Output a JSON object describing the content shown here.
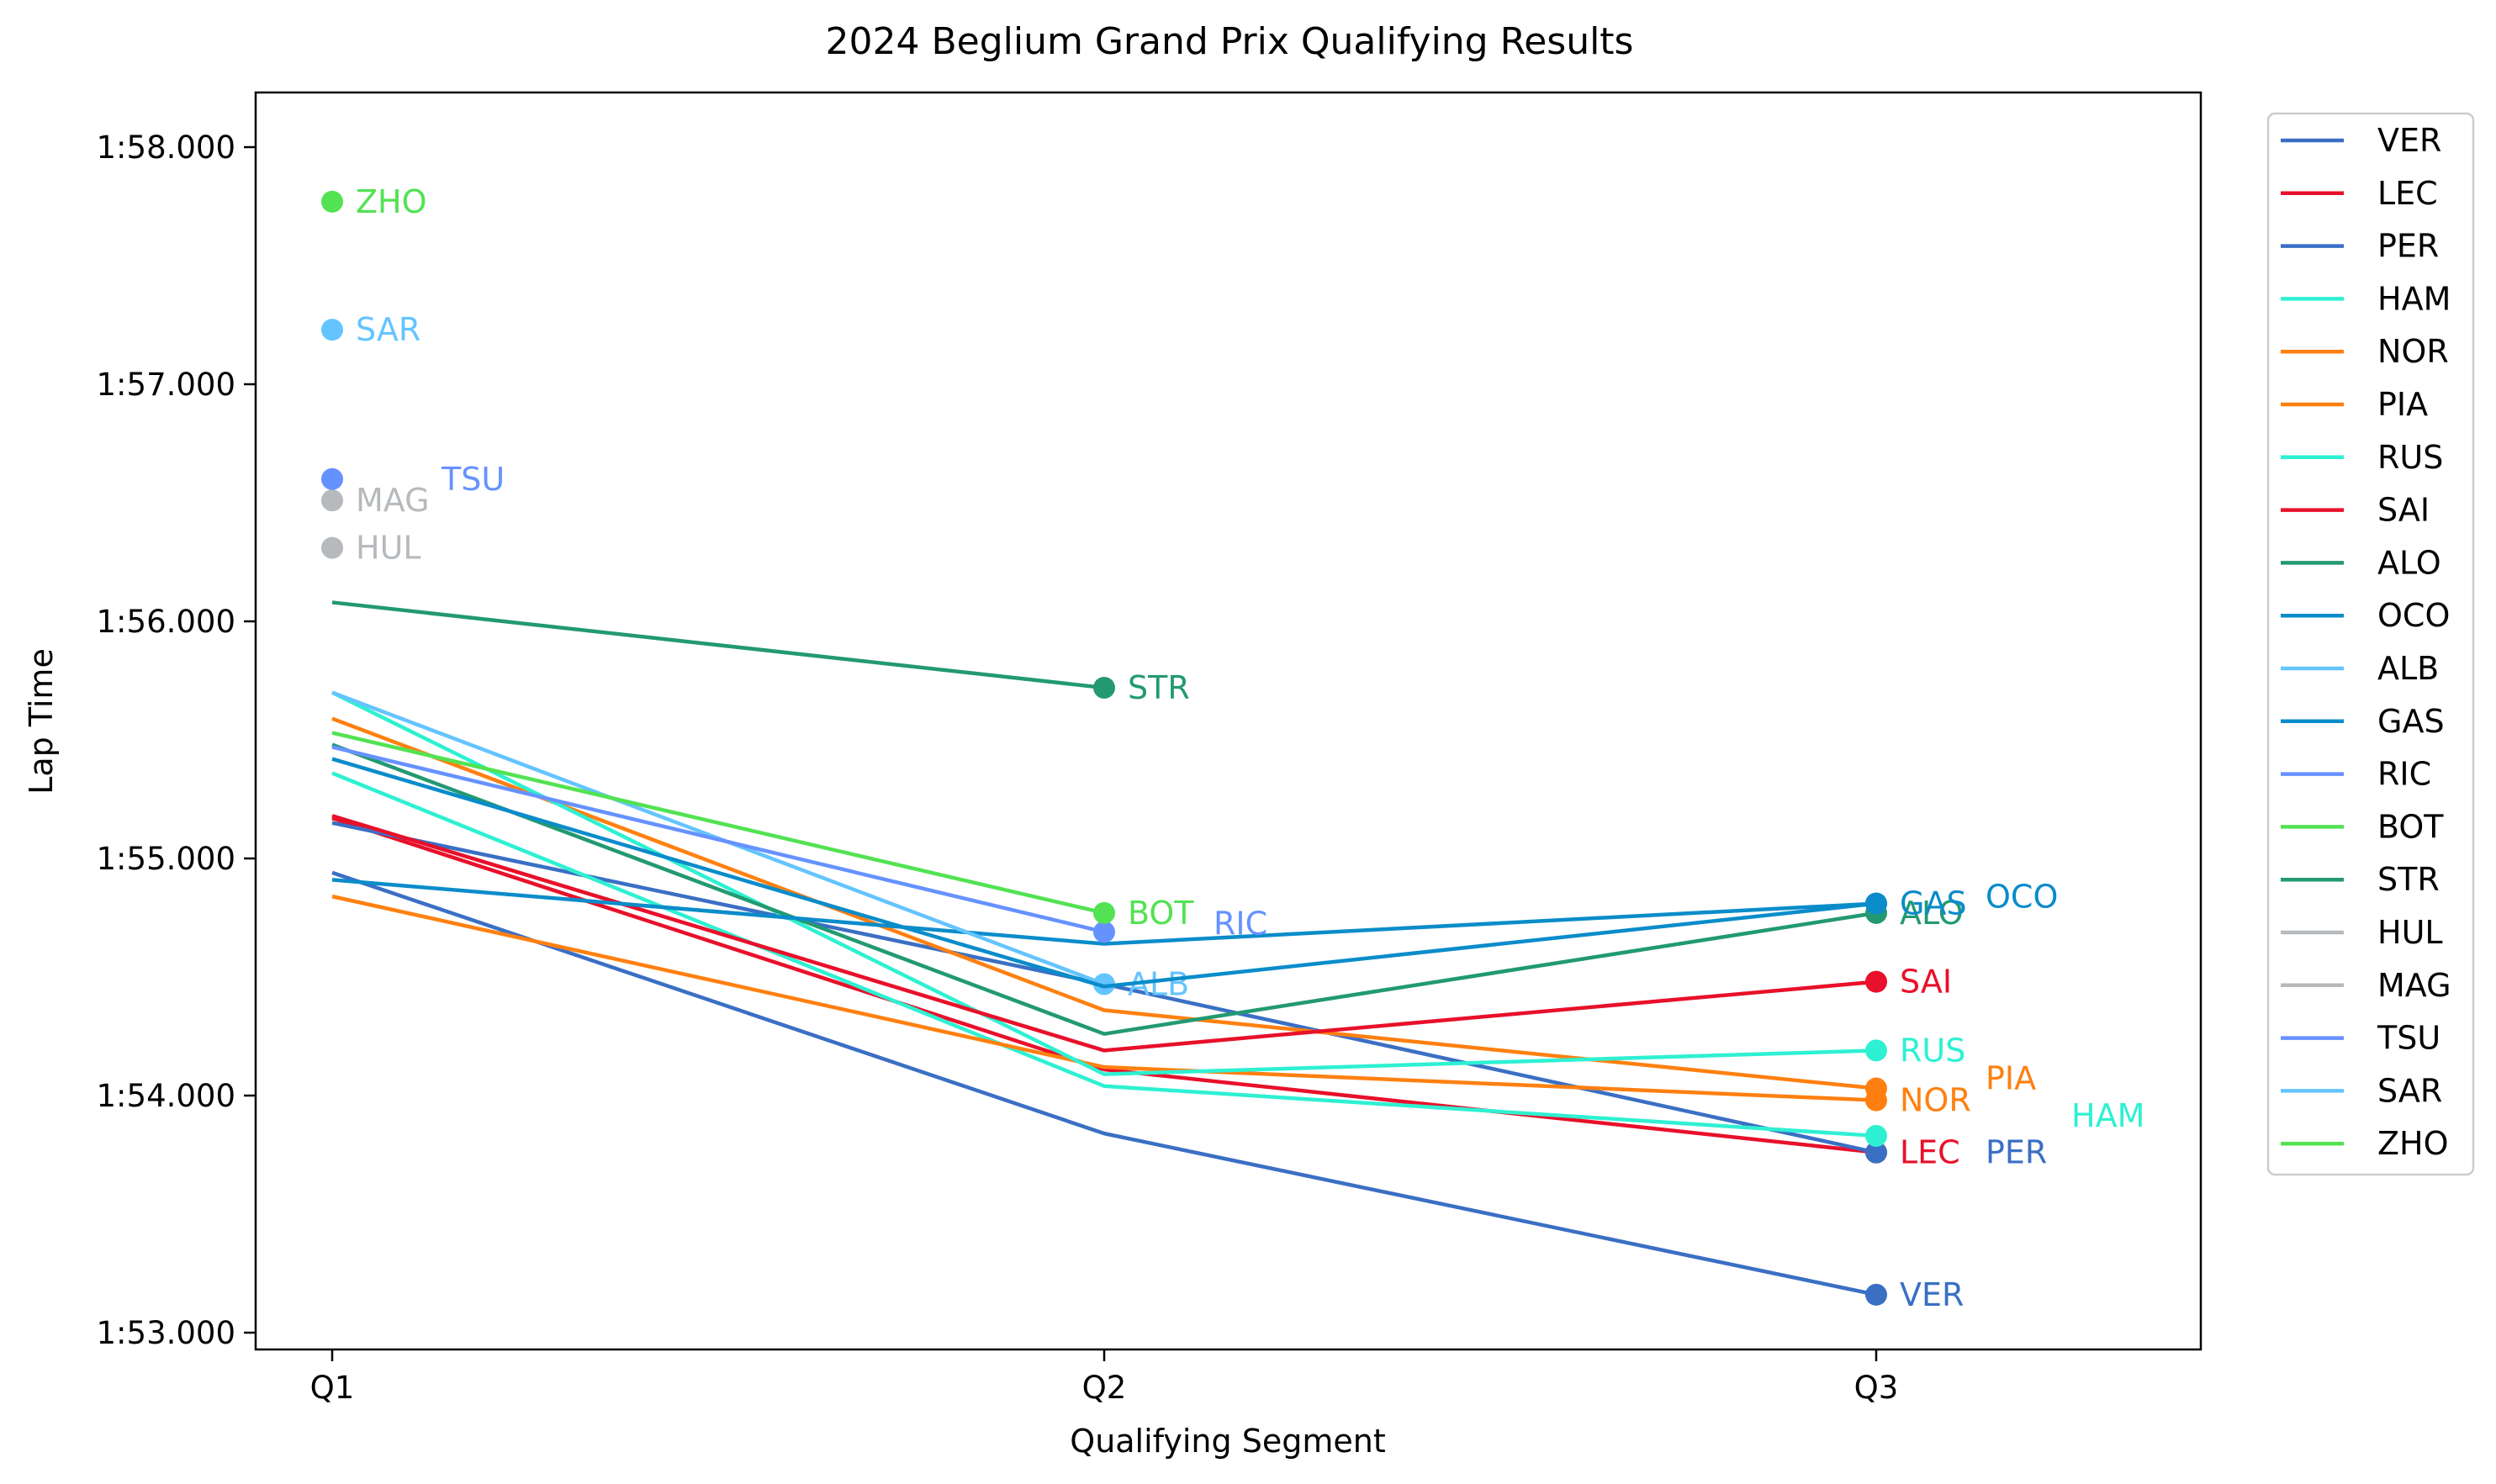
{
  "chart_data": {
    "type": "line",
    "title": "2024 Beglium Grand Prix Qualifying Results",
    "xlabel": "Qualifying Segment",
    "ylabel": "Lap Time",
    "categories": [
      "Q1",
      "Q2",
      "Q3"
    ],
    "ylim": [
      113.0,
      118.0
    ],
    "yticks": [
      113,
      114,
      115,
      116,
      117,
      118
    ],
    "ytick_labels": [
      "1:53.000",
      "1:54.000",
      "1:55.000",
      "1:56.000",
      "1:57.000",
      "1:58.000"
    ],
    "legend_position": "outside-right",
    "grid": false,
    "series": [
      {
        "name": "VER",
        "color": "#3A6FC4",
        "values": [
          114.94,
          113.84,
          113.16
        ]
      },
      {
        "name": "LEC",
        "color": "#E8102A",
        "values": [
          115.17,
          114.11,
          113.76
        ]
      },
      {
        "name": "PER",
        "color": "#3A6FC4",
        "values": [
          115.15,
          114.47,
          113.76
        ]
      },
      {
        "name": "HAM",
        "color": "#2EF0D2",
        "values": [
          115.36,
          114.04,
          113.83
        ]
      },
      {
        "name": "NOR",
        "color": "#FF8010",
        "values": [
          114.84,
          114.12,
          113.98
        ]
      },
      {
        "name": "PIA",
        "color": "#FF8010",
        "values": [
          115.59,
          114.36,
          114.03
        ]
      },
      {
        "name": "RUS",
        "color": "#2EF0D2",
        "values": [
          115.7,
          114.09,
          114.19
        ]
      },
      {
        "name": "SAI",
        "color": "#E8102A",
        "values": [
          115.18,
          114.19,
          114.48
        ]
      },
      {
        "name": "ALO",
        "color": "#229972",
        "values": [
          115.48,
          114.26,
          114.77
        ]
      },
      {
        "name": "OCO",
        "color": "#0A8CCA",
        "values": [
          114.91,
          114.64,
          114.81
        ]
      },
      {
        "name": "ALB",
        "color": "#64C4FF",
        "values": [
          115.7,
          114.47,
          null
        ]
      },
      {
        "name": "GAS",
        "color": "#0A8CCA",
        "values": [
          115.42,
          114.46,
          114.81
        ]
      },
      {
        "name": "RIC",
        "color": "#6692FF",
        "values": [
          115.47,
          114.69,
          null
        ]
      },
      {
        "name": "BOT",
        "color": "#52E252",
        "values": [
          115.53,
          114.77,
          null
        ]
      },
      {
        "name": "STR",
        "color": "#229972",
        "values": [
          116.08,
          115.72,
          null
        ]
      },
      {
        "name": "HUL",
        "color": "#B6BABD",
        "values": [
          116.31,
          null,
          null
        ]
      },
      {
        "name": "MAG",
        "color": "#B6BABD",
        "values": [
          116.51,
          null,
          null
        ]
      },
      {
        "name": "TSU",
        "color": "#6692FF",
        "values": [
          116.6,
          null,
          null
        ]
      },
      {
        "name": "SAR",
        "color": "#64C4FF",
        "values": [
          117.23,
          null,
          null
        ]
      },
      {
        "name": "ZHO",
        "color": "#52E252",
        "values": [
          117.77,
          null,
          null
        ]
      }
    ]
  }
}
